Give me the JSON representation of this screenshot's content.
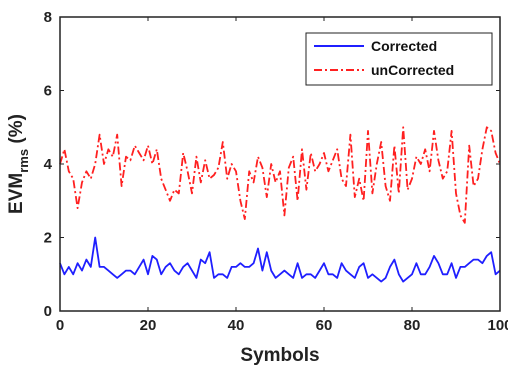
{
  "chart_data": {
    "type": "line",
    "title": "",
    "xlabel": "Symbols",
    "ylabel_main": "EVM",
    "ylabel_sub": "rms",
    "ylabel_unit": " (%)",
    "xlim": [
      0,
      100
    ],
    "ylim": [
      0,
      8
    ],
    "xticks": [
      0,
      20,
      40,
      60,
      80,
      100
    ],
    "yticks": [
      0,
      2,
      4,
      6,
      8
    ],
    "grid": false,
    "legend_position": "top-right",
    "series": [
      {
        "name": "Corrected",
        "color": "#1f1fff",
        "style": "solid",
        "x": [
          0,
          1,
          2,
          3,
          4,
          5,
          6,
          7,
          8,
          9,
          10,
          11,
          12,
          13,
          14,
          15,
          16,
          17,
          18,
          19,
          20,
          21,
          22,
          23,
          24,
          25,
          26,
          27,
          28,
          29,
          30,
          31,
          32,
          33,
          34,
          35,
          36,
          37,
          38,
          39,
          40,
          41,
          42,
          43,
          44,
          45,
          46,
          47,
          48,
          49,
          50,
          51,
          52,
          53,
          54,
          55,
          56,
          57,
          58,
          59,
          60,
          61,
          62,
          63,
          64,
          65,
          66,
          67,
          68,
          69,
          70,
          71,
          72,
          73,
          74,
          75,
          76,
          77,
          78,
          79,
          80,
          81,
          82,
          83,
          84,
          85,
          86,
          87,
          88,
          89,
          90,
          91,
          92,
          93,
          94,
          95,
          96,
          97,
          98,
          99,
          100
        ],
        "y": [
          1.3,
          1.0,
          1.2,
          1.0,
          1.3,
          1.1,
          1.4,
          1.2,
          2.0,
          1.2,
          1.2,
          1.1,
          1.0,
          0.9,
          1.0,
          1.1,
          1.1,
          1.0,
          1.2,
          1.4,
          1.0,
          1.5,
          1.4,
          1.0,
          1.2,
          1.3,
          1.1,
          1.0,
          1.2,
          1.3,
          1.1,
          0.9,
          1.4,
          1.3,
          1.6,
          0.9,
          1.0,
          1.0,
          0.9,
          1.2,
          1.2,
          1.3,
          1.2,
          1.2,
          1.3,
          1.7,
          1.1,
          1.6,
          1.1,
          0.9,
          1.0,
          1.1,
          1.0,
          0.9,
          1.3,
          0.9,
          1.0,
          1.0,
          0.9,
          1.1,
          1.3,
          1.0,
          1.0,
          0.9,
          1.3,
          1.1,
          1.0,
          0.9,
          1.2,
          1.3,
          0.9,
          1.0,
          0.9,
          0.8,
          0.9,
          1.2,
          1.4,
          1.0,
          0.8,
          0.9,
          1.0,
          1.3,
          1.0,
          1.0,
          1.2,
          1.5,
          1.3,
          1.0,
          1.0,
          1.3,
          0.9,
          1.2,
          1.2,
          1.3,
          1.4,
          1.4,
          1.3,
          1.5,
          1.6,
          1.0,
          1.1
        ]
      },
      {
        "name": "unCorrected",
        "color": "#ff2020",
        "style": "dashdot",
        "x": [
          0,
          1,
          2,
          3,
          4,
          5,
          6,
          7,
          8,
          9,
          10,
          11,
          12,
          13,
          14,
          15,
          16,
          17,
          18,
          19,
          20,
          21,
          22,
          23,
          24,
          25,
          26,
          27,
          28,
          29,
          30,
          31,
          32,
          33,
          34,
          35,
          36,
          37,
          38,
          39,
          40,
          41,
          42,
          43,
          44,
          45,
          46,
          47,
          48,
          49,
          50,
          51,
          52,
          53,
          54,
          55,
          56,
          57,
          58,
          59,
          60,
          61,
          62,
          63,
          64,
          65,
          66,
          67,
          68,
          69,
          70,
          71,
          72,
          73,
          74,
          75,
          76,
          77,
          78,
          79,
          80,
          81,
          82,
          83,
          84,
          85,
          86,
          87,
          88,
          89,
          90,
          91,
          92,
          93,
          94,
          95,
          96,
          97,
          98,
          99,
          100
        ],
        "y": [
          4.0,
          4.4,
          3.8,
          3.6,
          2.8,
          3.5,
          3.8,
          3.6,
          4.0,
          4.8,
          4.0,
          4.4,
          4.2,
          4.8,
          3.4,
          4.2,
          4.1,
          4.5,
          4.3,
          4.1,
          4.5,
          4.0,
          4.4,
          3.6,
          3.3,
          3.0,
          3.3,
          3.2,
          4.3,
          3.8,
          3.2,
          4.2,
          3.5,
          4.1,
          3.6,
          3.7,
          3.9,
          4.6,
          3.6,
          4.0,
          3.8,
          3.0,
          2.5,
          3.8,
          3.5,
          4.2,
          3.9,
          3.1,
          4.0,
          3.5,
          3.8,
          2.6,
          3.9,
          4.2,
          3.0,
          4.4,
          3.3,
          4.3,
          3.8,
          4.0,
          4.3,
          3.8,
          4.1,
          4.4,
          3.6,
          3.4,
          4.8,
          3.1,
          3.6,
          3.0,
          4.9,
          3.2,
          4.0,
          4.6,
          3.4,
          3.0,
          4.5,
          3.2,
          5.0,
          3.3,
          3.6,
          4.2,
          4.0,
          4.4,
          3.8,
          4.9,
          4.1,
          3.6,
          3.8,
          4.9,
          3.2,
          2.6,
          2.4,
          4.5,
          3.4,
          3.6,
          4.4,
          5.0,
          4.9,
          4.3,
          4.0
        ]
      }
    ]
  }
}
